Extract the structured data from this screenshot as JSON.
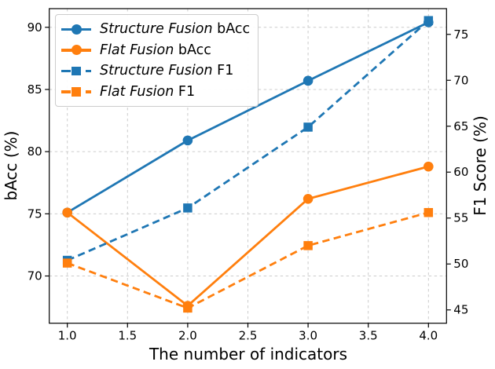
{
  "chart_data": {
    "type": "line",
    "title": "",
    "xlabel": "The number of indicators",
    "ylabel_left": "bAcc (%)",
    "ylabel_right": "F1 Score (%)",
    "x": [
      1.0,
      2.0,
      3.0,
      4.0
    ],
    "xlim": [
      0.85,
      4.15
    ],
    "ylim_left": [
      66.2,
      91.5
    ],
    "ylim_right": [
      43.55,
      77.8
    ],
    "xticks": {
      "values": [
        1.0,
        1.5,
        2.0,
        2.5,
        3.0,
        3.5,
        4.0
      ],
      "labels": [
        "1.0",
        "1.5",
        "2.0",
        "2.5",
        "3.0",
        "3.5",
        "4.0"
      ]
    },
    "yticks_left": {
      "values": [
        70,
        75,
        80,
        85,
        90
      ],
      "labels": [
        "70",
        "75",
        "80",
        "85",
        "90"
      ]
    },
    "yticks_right": {
      "values": [
        45,
        50,
        55,
        60,
        65,
        70,
        75
      ],
      "labels": [
        "45",
        "50",
        "55",
        "60",
        "65",
        "70",
        "75"
      ]
    },
    "grid": true,
    "grid_color": "#cccccc",
    "background": "#ffffff",
    "spine_color": "#000000",
    "legend_position": "upper-left",
    "series": [
      {
        "name": "Structure Fusion bAcc",
        "label_italic": "Structure Fusion",
        "label_regular": "bAcc",
        "axis": "left",
        "color": "#1f77b4",
        "linestyle": "solid",
        "marker": "circle",
        "values": [
          75.1,
          80.9,
          85.7,
          90.4
        ]
      },
      {
        "name": "Flat Fusion bAcc",
        "label_italic": "Flat Fusion",
        "label_regular": "bAcc",
        "axis": "left",
        "color": "#ff7f0e",
        "linestyle": "solid",
        "marker": "circle",
        "values": [
          75.1,
          67.6,
          76.2,
          78.8
        ]
      },
      {
        "name": "Structure Fusion F1",
        "label_italic": "Structure Fusion",
        "label_regular": "F1",
        "axis": "right",
        "color": "#1f77b4",
        "linestyle": "dashed",
        "marker": "square",
        "values": [
          50.4,
          56.1,
          64.9,
          76.5
        ]
      },
      {
        "name": "Flat Fusion F1",
        "label_italic": "Flat Fusion",
        "label_regular": "F1",
        "axis": "right",
        "color": "#ff7f0e",
        "linestyle": "dashed",
        "marker": "square",
        "values": [
          50.1,
          45.2,
          52.0,
          55.6
        ]
      }
    ]
  }
}
